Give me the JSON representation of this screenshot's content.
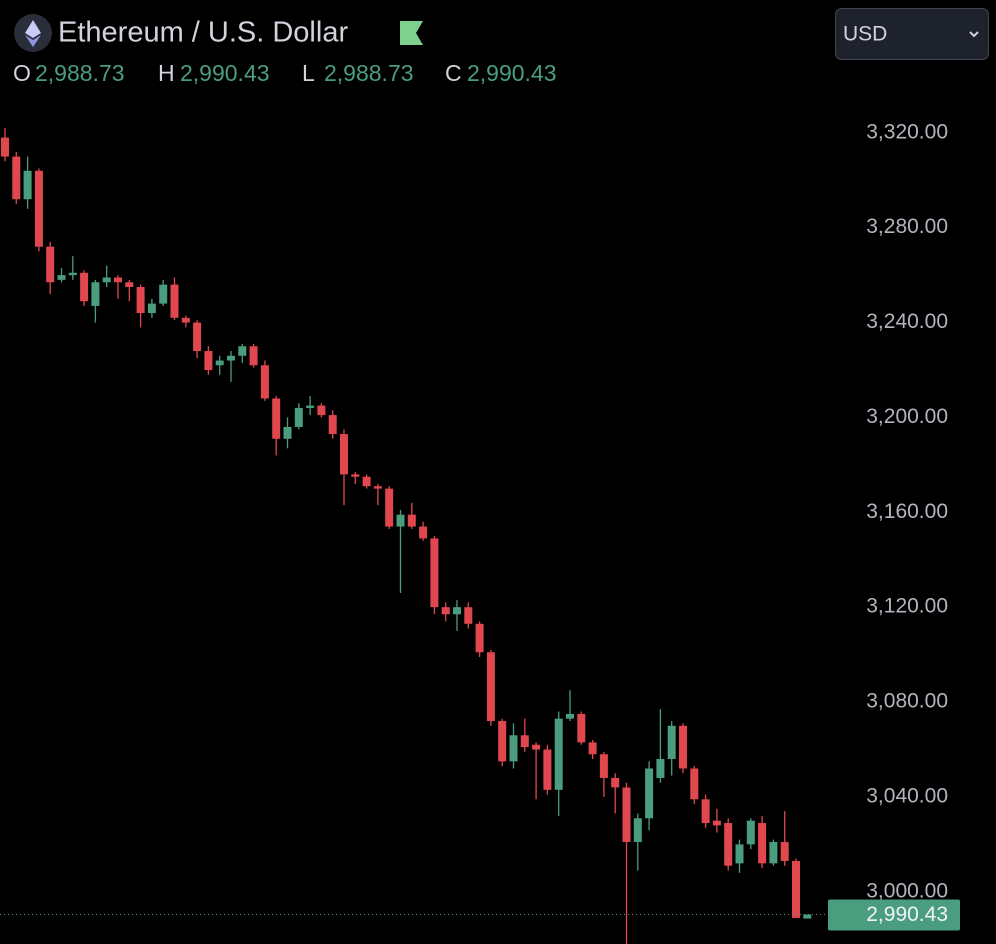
{
  "chart_data": {
    "type": "candlestick",
    "title": "Ethereum / U.S. Dollar",
    "ohlc": [
      {
        "label": "O",
        "value": 2988.73,
        "value_label": "2,988.73"
      },
      {
        "label": "H",
        "value": 2990.43,
        "value_label": "2,990.43"
      },
      {
        "label": "L",
        "value": 2988.73,
        "value_label": "2,988.73"
      },
      {
        "label": "C",
        "value": 2990.43,
        "value_label": "2,990.43"
      }
    ],
    "currency": "USD",
    "up_color": "#4a9d7f",
    "down_color": "#e0474f",
    "open": [
      3318,
      3310,
      3292,
      3304,
      3272,
      3258,
      3260,
      3261,
      3247,
      3257,
      3259,
      3257,
      3255,
      3244,
      3248,
      3256,
      3242,
      3240,
      3228,
      3222,
      3224,
      3226,
      3230,
      3222,
      3208,
      3191,
      3196,
      3204,
      3205,
      3201,
      3193,
      3176,
      3175,
      3171,
      3170,
      3154,
      3159,
      3154,
      3149,
      3120,
      3117,
      3120,
      3113,
      3101,
      3072,
      3055,
      3066,
      3062,
      3060,
      3043,
      3073,
      3075,
      3063,
      3058,
      3048,
      3044,
      3021,
      3031,
      3048,
      3056,
      3070,
      3052,
      3039,
      3030,
      3029,
      3012,
      3020,
      3029,
      3012,
      3021,
      3013,
      2988.73
    ],
    "high": [
      3322,
      3312,
      3310,
      3305,
      3274,
      3263,
      3268,
      3262,
      3258,
      3264,
      3260,
      3258,
      3256,
      3250,
      3258,
      3259,
      3243,
      3241,
      3230,
      3226,
      3228,
      3231,
      3231,
      3224,
      3209,
      3200,
      3206,
      3209,
      3206,
      3203,
      3195,
      3177,
      3176,
      3172,
      3171,
      3161,
      3164,
      3156,
      3150,
      3122,
      3123,
      3122,
      3114,
      3102,
      3073,
      3071,
      3073,
      3063,
      3062,
      3076,
      3085,
      3076,
      3064,
      3059,
      3050,
      3046,
      3033,
      3055,
      3077,
      3072,
      3071,
      3053,
      3041,
      3035,
      3031,
      3022,
      3031,
      3032,
      3022,
      3034,
      3014,
      2990.43
    ],
    "low": [
      3308,
      3290,
      3288,
      3270,
      3252,
      3257,
      3258,
      3247,
      3240,
      3255,
      3250,
      3249,
      3238,
      3242,
      3247,
      3241,
      3238,
      3225,
      3218,
      3218,
      3215,
      3223,
      3221,
      3207,
      3184,
      3187,
      3195,
      3201,
      3200,
      3191,
      3163,
      3172,
      3170,
      3163,
      3153,
      3126,
      3153,
      3148,
      3117,
      3114,
      3110,
      3111,
      3099,
      3070,
      3053,
      3052,
      3059,
      3039,
      3041,
      3032,
      3072,
      3062,
      3056,
      3040,
      3033,
      2975,
      3009,
      3026,
      3046,
      3049,
      3050,
      3037,
      3027,
      3025,
      3009,
      3008,
      3018,
      3010,
      3011,
      3011,
      2989,
      2988.73
    ],
    "close": [
      3310,
      3292,
      3304,
      3272,
      3257,
      3260,
      3261,
      3249,
      3257,
      3259,
      3257,
      3255,
      3244,
      3248,
      3256,
      3242,
      3240,
      3228,
      3220,
      3224,
      3226,
      3230,
      3222,
      3208,
      3191,
      3196,
      3204,
      3205,
      3201,
      3193,
      3176,
      3175,
      3171,
      3170,
      3154,
      3159,
      3154,
      3149,
      3120,
      3117,
      3120,
      3113,
      3101,
      3072,
      3055,
      3066,
      3061,
      3060,
      3043,
      3073,
      3075,
      3063,
      3058,
      3048,
      3044,
      3021,
      3031,
      3052,
      3056,
      3070,
      3052,
      3039,
      3029,
      3028,
      3011,
      3020,
      3030,
      3012,
      3021,
      3013,
      2989,
      2990.43
    ],
    "ylim": [
      2978,
      3376
    ],
    "yticks": [
      {
        "value": 3000,
        "label": "3,000.00"
      },
      {
        "value": 3040,
        "label": "3,040.00"
      },
      {
        "value": 3080,
        "label": "3,080.00"
      },
      {
        "value": 3120,
        "label": "3,120.00"
      },
      {
        "value": 3160,
        "label": "3,160.00"
      },
      {
        "value": 3200,
        "label": "3,200.00"
      },
      {
        "value": 3240,
        "label": "3,240.00"
      },
      {
        "value": 3280,
        "label": "3,280.00"
      },
      {
        "value": 3320,
        "label": "3,320.00"
      }
    ],
    "last_price": {
      "value": 2990.43,
      "label": "2,990.43"
    }
  }
}
